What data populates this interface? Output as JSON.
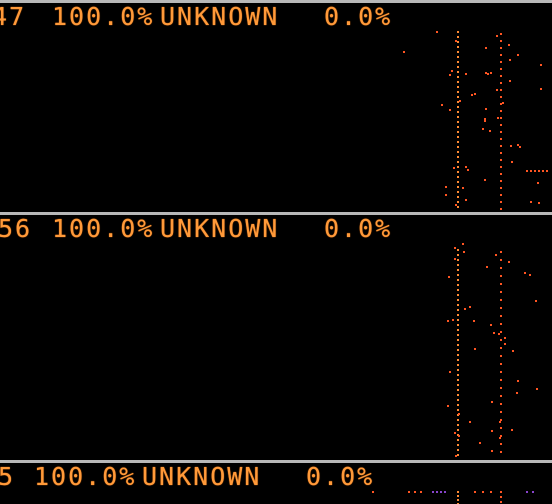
{
  "colors": {
    "text": "#ff9a3a",
    "dots": "#ff5522",
    "dots_alt": "#ff8a33",
    "accent_purple": "#8844cc",
    "divider": "#b8b8b8",
    "background": "#000000"
  },
  "panels": [
    {
      "index": "47",
      "percent": "100.0%",
      "status": "UNKNOWN",
      "value": "0.0%"
    },
    {
      "index": "56",
      "percent": "100.0%",
      "status": "UNKNOWN",
      "value": "0.0%"
    },
    {
      "index": "5",
      "percent": "100.0%",
      "status": "UNKNOWN",
      "value": "0.0%"
    }
  ]
}
